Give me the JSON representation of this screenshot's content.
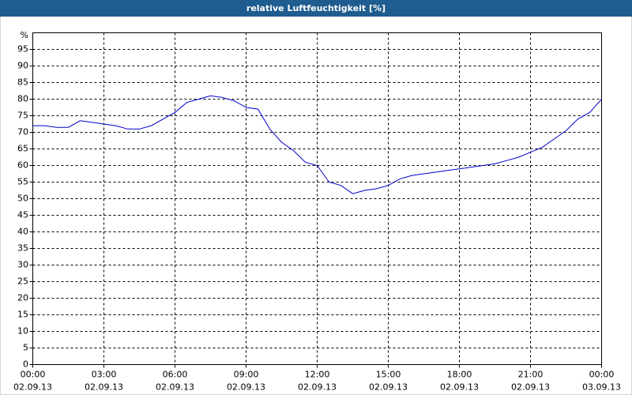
{
  "chart_data": {
    "type": "line",
    "title": "relative Luftfeuchtigkeit [%]",
    "y_label": "%",
    "x": [
      0,
      0.5,
      1,
      1.5,
      2,
      2.5,
      3,
      3.5,
      4,
      4.5,
      5,
      5.5,
      6,
      6.5,
      7,
      7.5,
      8,
      8.5,
      9,
      9.5,
      10,
      10.5,
      11,
      11.5,
      12,
      12.5,
      13,
      13.5,
      14,
      14.5,
      15,
      15.5,
      16,
      16.5,
      17,
      17.5,
      18,
      18.5,
      19,
      19.5,
      20,
      20.5,
      21,
      21.5,
      22,
      22.5,
      23,
      23.5,
      24
    ],
    "series": [
      {
        "name": "relative Luftfeuchtigkeit",
        "color": "#0000cc",
        "values": [
          72,
          72,
          71.5,
          71.5,
          73.5,
          73,
          72.5,
          72,
          71,
          71,
          72,
          74,
          76,
          79,
          80,
          81,
          80.5,
          79.5,
          77.5,
          77,
          71,
          67,
          64.5,
          61,
          60,
          55,
          54,
          51.5,
          52.5,
          53,
          54,
          56,
          57,
          57.5,
          58,
          58.5,
          59,
          59.5,
          60,
          60.5,
          61.5,
          62.5,
          64,
          65.5,
          68,
          70.5,
          74,
          76,
          80
        ]
      }
    ],
    "xlim": [
      0,
      24
    ],
    "xticks": [
      {
        "value": 0,
        "time": "00:00",
        "date": "02.09.13"
      },
      {
        "value": 3,
        "time": "03:00",
        "date": "02.09.13"
      },
      {
        "value": 6,
        "time": "06:00",
        "date": "02.09.13"
      },
      {
        "value": 9,
        "time": "09:00",
        "date": "02.09.13"
      },
      {
        "value": 12,
        "time": "12:00",
        "date": "02.09.13"
      },
      {
        "value": 15,
        "time": "15:00",
        "date": "02.09.13"
      },
      {
        "value": 18,
        "time": "18:00",
        "date": "02.09.13"
      },
      {
        "value": 21,
        "time": "21:00",
        "date": "02.09.13"
      },
      {
        "value": 24,
        "time": "00:00",
        "date": "03.09.13"
      }
    ],
    "ylim": [
      0,
      100
    ],
    "yticks": [
      0,
      5,
      10,
      15,
      20,
      25,
      30,
      35,
      40,
      45,
      50,
      55,
      60,
      65,
      70,
      75,
      80,
      85,
      90,
      95
    ],
    "grid": true
  }
}
